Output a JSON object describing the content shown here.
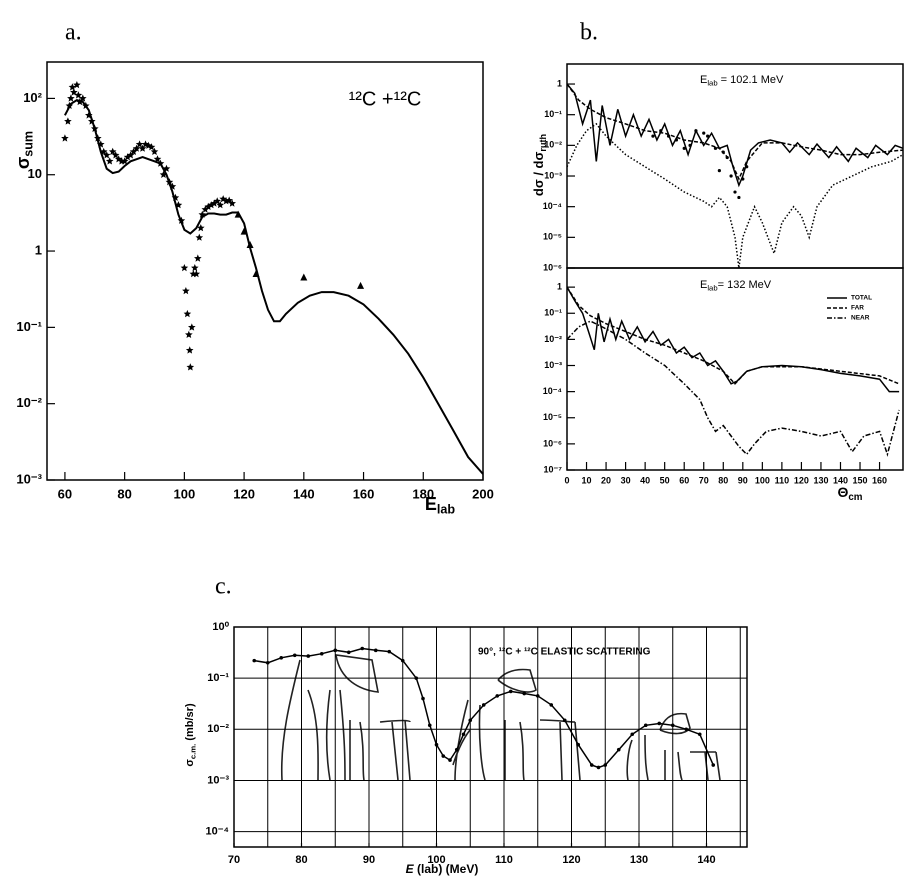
{
  "chart_data": [
    {
      "type": "line",
      "panel": "a.",
      "annotation": "¹²C +¹²C",
      "xlabel": {
        "main": "E",
        "sub": "lab"
      },
      "ylabel": {
        "main": "σ",
        "sub": "sum"
      },
      "xlim": [
        54,
        200
      ],
      "ylim": [
        0.001,
        300
      ],
      "log_y": true,
      "xticks": [
        60,
        80,
        100,
        120,
        140,
        160,
        180,
        200
      ],
      "yticks": [
        {
          "value": 0.001,
          "label": "10⁻³"
        },
        {
          "value": 0.01,
          "label": "10⁻²"
        },
        {
          "value": 0.1,
          "label": "10⁻¹"
        },
        1,
        10,
        {
          "value": 100,
          "label": "10²"
        }
      ],
      "series": [
        {
          "color": "#000",
          "marker": "none",
          "dash": "solid",
          "x": [
            60,
            62,
            64,
            66,
            68,
            70,
            72,
            74,
            76,
            78,
            80,
            82,
            84,
            86,
            88,
            90,
            92,
            94,
            96,
            98,
            100,
            102,
            104,
            106,
            108,
            110,
            112,
            114,
            116,
            118,
            120,
            122,
            124,
            126,
            128,
            130,
            132,
            134,
            138,
            142,
            146,
            150,
            155,
            160,
            165,
            170,
            175,
            180,
            185,
            190,
            195,
            200
          ],
          "values": [
            60,
            85,
            95,
            90,
            70,
            40,
            20,
            12,
            10.5,
            11,
            13,
            15,
            16,
            17,
            16,
            15,
            14,
            10,
            6,
            3,
            1.9,
            1.7,
            2,
            2.8,
            3.1,
            3.1,
            3,
            3,
            3.2,
            3.2,
            2.3,
            1.1,
            0.6,
            0.3,
            0.17,
            0.12,
            0.12,
            0.15,
            0.21,
            0.26,
            0.29,
            0.29,
            0.26,
            0.2,
            0.13,
            0.08,
            0.045,
            0.022,
            0.01,
            0.0045,
            0.002,
            0.0012
          ]
        },
        {
          "color": "#000",
          "marker": "star",
          "x": [
            60,
            61,
            61.5,
            62,
            62.5,
            63,
            64,
            64.5,
            65,
            66,
            67,
            68,
            69,
            70,
            71,
            72,
            73,
            74,
            75,
            76,
            77,
            78,
            79,
            80,
            81,
            82,
            83,
            84,
            85,
            86,
            87,
            88,
            89,
            90,
            91,
            92,
            93,
            94,
            95,
            96,
            97,
            98,
            99,
            100,
            100.5,
            101,
            101.5,
            101.8,
            102,
            102.5,
            103,
            103.5,
            104,
            104.5,
            105,
            105.5,
            106,
            107,
            108,
            109,
            110,
            111,
            112,
            113,
            114,
            115,
            116
          ],
          "values": [
            30,
            50,
            80,
            100,
            140,
            120,
            150,
            110,
            90,
            100,
            80,
            60,
            50,
            40,
            30,
            25,
            20,
            18,
            15,
            20,
            18,
            16,
            15,
            15,
            17,
            18,
            20,
            22,
            25,
            22,
            25,
            24,
            23,
            20,
            16,
            14,
            10,
            12,
            8,
            7,
            5,
            4,
            2.5,
            0.6,
            0.3,
            0.15,
            0.08,
            0.05,
            0.03,
            0.1,
            0.5,
            0.6,
            0.5,
            0.8,
            1.5,
            2,
            3,
            3.5,
            3.8,
            4,
            4.2,
            4.5,
            4,
            4.8,
            4.5,
            4.6,
            4.2
          ]
        },
        {
          "color": "#000",
          "marker": "triangle",
          "x": [
            118,
            120,
            122,
            124,
            140,
            159
          ],
          "values": [
            3,
            1.8,
            1.2,
            0.5,
            0.45,
            0.35
          ]
        }
      ]
    },
    {
      "type": "line",
      "panel": "b.",
      "annotation": {
        "main": "E",
        "sub": "lab",
        "after": " = 102.1 MeV"
      },
      "ylabel": {
        "main": "dσ / dσ",
        "sub": "ruth"
      },
      "xlim": [
        0,
        172
      ],
      "ylim": [
        1e-06,
        4.5
      ],
      "log_y": true,
      "yticks": [
        {
          "value": 1e-06,
          "label": "10⁻⁶"
        },
        {
          "value": 1e-05,
          "label": "10⁻⁵"
        },
        {
          "value": 0.0001,
          "label": "10⁻⁴"
        },
        {
          "value": 0.001,
          "label": "10⁻³"
        },
        {
          "value": 0.01,
          "label": "10⁻²"
        },
        {
          "value": 0.1,
          "label": "10⁻¹"
        },
        1
      ],
      "series": [
        {
          "color": "#000",
          "marker": "none",
          "dash": "solid",
          "x": [
            0,
            4,
            8,
            12,
            15,
            18,
            22,
            26,
            30,
            34,
            38,
            42,
            46,
            50,
            54,
            58,
            62,
            66,
            70,
            74,
            78,
            82,
            85,
            88,
            90,
            94,
            98,
            104,
            110,
            114,
            118,
            124,
            128,
            134,
            138,
            144,
            148,
            154,
            158,
            164,
            168,
            172
          ],
          "values": [
            1,
            0.5,
            0.05,
            0.3,
            0.003,
            0.2,
            0.01,
            0.15,
            0.02,
            0.1,
            0.02,
            0.07,
            0.015,
            0.05,
            0.01,
            0.03,
            0.005,
            0.03,
            0.01,
            0.025,
            0.008,
            0.01,
            0.002,
            0.0005,
            0.001,
            0.007,
            0.012,
            0.015,
            0.012,
            0.006,
            0.012,
            0.005,
            0.011,
            0.004,
            0.009,
            0.003,
            0.008,
            0.004,
            0.01,
            0.005,
            0.01,
            0.008
          ]
        },
        {
          "color": "#000",
          "marker": "none",
          "dash": "dashed",
          "x": [
            0,
            6,
            12,
            20,
            30,
            40,
            50,
            60,
            70,
            78,
            84,
            88,
            92,
            100,
            110,
            120,
            130,
            140,
            150,
            160,
            172
          ],
          "values": [
            1,
            0.3,
            0.15,
            0.08,
            0.05,
            0.03,
            0.025,
            0.015,
            0.012,
            0.008,
            0.003,
            0.0008,
            0.003,
            0.012,
            0.012,
            0.009,
            0.007,
            0.005,
            0.005,
            0.006,
            0.007
          ]
        },
        {
          "color": "#000",
          "marker": "none",
          "dash": "dotted",
          "x": [
            0,
            5,
            10,
            15,
            20,
            30,
            40,
            50,
            60,
            70,
            74,
            78,
            82,
            86,
            88,
            90,
            96,
            100,
            106,
            110,
            116,
            120,
            124,
            128,
            136,
            146,
            156,
            166,
            172
          ],
          "values": [
            0.002,
            0.01,
            0.03,
            0.05,
            0.02,
            0.005,
            0.002,
            0.0008,
            0.0003,
            0.00015,
            0.0001,
            0.0002,
            0.0001,
            1e-05,
            1e-06,
            1e-05,
            0.0001,
            3e-05,
            3e-06,
            3e-05,
            0.0001,
            5e-05,
            1e-05,
            0.0001,
            0.0005,
            0.001,
            0.002,
            0.003,
            0.005
          ]
        },
        {
          "color": "#000",
          "marker": "dot",
          "x": [
            44,
            48,
            52,
            56,
            60,
            63,
            66,
            70,
            72,
            76,
            78,
            80,
            82,
            84,
            86,
            88,
            90,
            92
          ],
          "values": [
            0.02,
            0.03,
            0.02,
            0.015,
            0.008,
            0.01,
            0.03,
            0.025,
            0.02,
            0.008,
            0.0015,
            0.006,
            0.004,
            0.001,
            0.0003,
            0.0002,
            0.0008,
            0.002
          ]
        }
      ]
    },
    {
      "type": "line",
      "annotation": {
        "main": "E",
        "sub": "lab",
        "after": "= 132 MeV"
      },
      "xlabel": {
        "main": "Θ",
        "sub": "cm"
      },
      "legend": "upper right",
      "xlim": [
        0,
        172
      ],
      "ylim": [
        1e-07,
        5.4
      ],
      "log_y": true,
      "xticks": [
        0,
        10,
        20,
        30,
        40,
        50,
        60,
        70,
        80,
        90,
        100,
        110,
        120,
        130,
        140,
        150,
        160
      ],
      "yticks": [
        {
          "value": 1e-07,
          "label": "10⁻⁷"
        },
        {
          "value": 1e-06,
          "label": "10⁻⁶"
        },
        {
          "value": 1e-05,
          "label": "10⁻⁵"
        },
        {
          "value": 0.0001,
          "label": "10⁻⁴"
        },
        {
          "value": 0.001,
          "label": "10⁻³"
        },
        {
          "value": 0.01,
          "label": "10⁻²"
        },
        {
          "value": 0.1,
          "label": "10⁻¹"
        },
        1
      ],
      "series": [
        {
          "name": "TOTAL",
          "color": "#000",
          "marker": "none",
          "dash": "solid",
          "x": [
            0,
            4,
            8,
            11,
            14,
            16,
            19,
            22,
            25,
            28,
            32,
            36,
            40,
            44,
            48,
            52,
            56,
            60,
            64,
            68,
            72,
            76,
            80,
            84,
            87,
            92,
            100,
            110,
            120,
            130,
            140,
            150,
            160,
            165,
            170
          ],
          "values": [
            1,
            0.3,
            0.1,
            0.02,
            0.004,
            0.1,
            0.008,
            0.06,
            0.01,
            0.05,
            0.01,
            0.03,
            0.008,
            0.02,
            0.006,
            0.01,
            0.003,
            0.005,
            0.002,
            0.003,
            0.001,
            0.0015,
            0.0006,
            0.0002,
            0.00025,
            0.0006,
            0.0009,
            0.001,
            0.0009,
            0.0007,
            0.0005,
            0.0004,
            0.0003,
            0.0001,
            0.0001
          ]
        },
        {
          "name": "FAR",
          "color": "#000",
          "marker": "none",
          "dash": "dashed",
          "x": [
            0,
            6,
            12,
            20,
            30,
            40,
            50,
            60,
            70,
            80,
            86,
            92,
            100,
            120,
            140,
            160,
            170
          ],
          "values": [
            1,
            0.2,
            0.08,
            0.04,
            0.02,
            0.01,
            0.006,
            0.003,
            0.0015,
            0.0006,
            0.0002,
            0.0006,
            0.0009,
            0.0009,
            0.0006,
            0.0004,
            0.0002
          ]
        },
        {
          "name": "NEAR",
          "color": "#000",
          "marker": "none",
          "dash": "dashdot",
          "x": [
            0,
            6,
            12,
            18,
            30,
            40,
            50,
            60,
            68,
            72,
            76,
            80,
            84,
            88,
            92,
            96,
            102,
            110,
            120,
            130,
            140,
            146,
            152,
            160,
            164,
            170
          ],
          "values": [
            0.01,
            0.03,
            0.05,
            0.03,
            0.01,
            0.003,
            0.001,
            0.0002,
            5e-05,
            1e-05,
            3e-06,
            5e-06,
            2e-06,
            8e-07,
            4e-07,
            1e-06,
            3e-06,
            4e-06,
            3e-06,
            2e-06,
            3e-06,
            5e-07,
            2e-06,
            3e-06,
            4e-07,
            2e-05
          ]
        }
      ]
    },
    {
      "type": "line",
      "panel": "c.",
      "annotation": "90°, ¹²C + ¹²C  ELASTIC SCATTERING",
      "xlabel": {
        "main": "E",
        "after": " (lab)  (MeV)"
      },
      "ylabel": {
        "main": "σ",
        "sub": "c.m.",
        "after": " (mb/sr)"
      },
      "xlim": [
        70,
        146
      ],
      "ylim": [
        5e-05,
        1
      ],
      "log_y": true,
      "grid": true,
      "xticks": [
        70,
        80,
        90,
        100,
        110,
        120,
        130,
        140
      ],
      "xgrid": [
        75,
        80,
        85,
        90,
        95,
        100,
        105,
        110,
        115,
        120,
        125,
        130,
        135,
        140,
        145
      ],
      "yticks": [
        {
          "value": 0.0001,
          "label": "10⁻⁴"
        },
        {
          "value": 0.001,
          "label": "10⁻³"
        },
        {
          "value": 0.01,
          "label": "10⁻²"
        },
        {
          "value": 0.1,
          "label": "10⁻¹"
        },
        {
          "value": 1,
          "label": "10⁰"
        }
      ],
      "series": [
        {
          "color": "#000",
          "marker": "none",
          "dash": "solid",
          "points": true,
          "x": [
            73,
            75,
            77,
            79,
            81,
            83,
            85,
            87,
            89,
            91,
            93,
            95,
            97,
            98,
            99,
            100,
            101,
            102,
            103,
            104,
            105,
            107,
            109,
            111,
            113,
            115,
            117,
            119,
            121,
            123,
            124,
            125,
            127,
            129,
            131,
            133,
            135,
            137,
            139,
            141
          ],
          "values": [
            0.22,
            0.2,
            0.25,
            0.28,
            0.27,
            0.3,
            0.35,
            0.32,
            0.38,
            0.35,
            0.33,
            0.22,
            0.1,
            0.04,
            0.012,
            0.005,
            0.003,
            0.0025,
            0.004,
            0.008,
            0.015,
            0.03,
            0.045,
            0.055,
            0.05,
            0.045,
            0.03,
            0.015,
            0.005,
            0.002,
            0.0018,
            0.002,
            0.004,
            0.008,
            0.012,
            0.013,
            0.012,
            0.01,
            0.008,
            0.002
          ]
        }
      ]
    }
  ]
}
